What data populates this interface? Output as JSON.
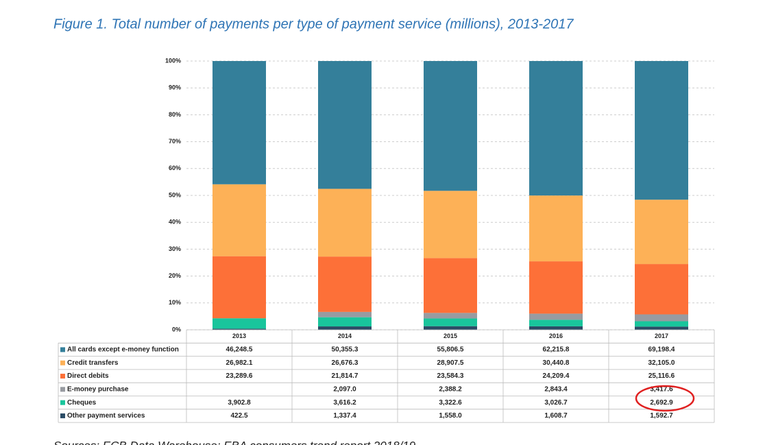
{
  "chart_data": {
    "type": "stacked_percent_bar",
    "title": "Figure 1. Total number of payments per type of payment service (millions), 2013-2017",
    "source": "Sources: ECB Data Warehouse; EBA consumers trend report 2018/19",
    "categories": [
      "2013",
      "2014",
      "2015",
      "2016",
      "2017"
    ],
    "ylim": [
      0,
      100
    ],
    "yticks": [
      {
        "value": 0,
        "label": "0%"
      },
      {
        "value": 10,
        "label": "10%"
      },
      {
        "value": 20,
        "label": "20%"
      },
      {
        "value": 30,
        "label": "30%"
      },
      {
        "value": 40,
        "label": "40%"
      },
      {
        "value": 50,
        "label": "50%"
      },
      {
        "value": 60,
        "label": "60%"
      },
      {
        "value": 70,
        "label": "70%"
      },
      {
        "value": 80,
        "label": "80%"
      },
      {
        "value": 90,
        "label": "90%"
      },
      {
        "value": 100,
        "label": "100%"
      }
    ],
    "grid": true,
    "series": [
      {
        "name": "All cards except e-money function",
        "color": "#347f9a",
        "values": [
          46248.5,
          50355.3,
          55806.5,
          62215.8,
          69198.4
        ],
        "value_labels": [
          "46,248.5",
          "50,355.3",
          "55,806.5",
          "62,215.8",
          "69,198.4"
        ]
      },
      {
        "name": "Credit transfers",
        "color": "#fdb157",
        "values": [
          26982.1,
          26676.3,
          28907.5,
          30440.8,
          32105.0
        ],
        "value_labels": [
          "26,982.1",
          "26,676.3",
          "28,907.5",
          "30,440.8",
          "32,105.0"
        ]
      },
      {
        "name": "Direct debits",
        "color": "#fd7038",
        "values": [
          23289.6,
          21814.7,
          23584.3,
          24209.4,
          25116.6
        ],
        "value_labels": [
          "23,289.6",
          "21,814.7",
          "23,584.3",
          "24,209.4",
          "25,116.6"
        ]
      },
      {
        "name": "E-money purchase",
        "color": "#989ba1",
        "values": [
          null,
          2097.0,
          2388.2,
          2843.4,
          3417.6
        ],
        "value_labels": [
          null,
          "2,097.0",
          "2,388.2",
          "2,843.4",
          "3,417.6"
        ]
      },
      {
        "name": "Cheques",
        "color": "#19c59c",
        "values": [
          3902.8,
          3616.2,
          3322.6,
          3026.7,
          2692.9
        ],
        "value_labels": [
          "3,902.8",
          "3,616.2",
          "3,322.6",
          "3,026.7",
          "2,692.9"
        ]
      },
      {
        "name": "Other payment services",
        "color": "#2b4c66",
        "values": [
          422.5,
          1337.4,
          1558.0,
          1608.7,
          1592.7
        ],
        "value_labels": [
          "422.5",
          "1,337.4",
          "1,558.0",
          "1,608.7",
          "1,592.7"
        ]
      }
    ]
  }
}
